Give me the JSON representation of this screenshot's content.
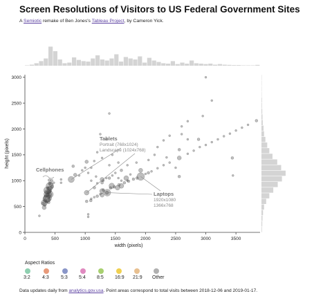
{
  "header": {
    "title": "Screen Resolutions of Visitors to US Federal Government Sites",
    "subtitle_prefix": "A ",
    "subtitle_link1": "Semiotic",
    "subtitle_mid": " remake of Ben Jones's ",
    "subtitle_link2": "Tableau Project",
    "subtitle_suffix": ", by Cameron Yick."
  },
  "legend": {
    "title": "Aspect Ratios",
    "items": [
      {
        "label": "3:2",
        "color": "#8fcfb0"
      },
      {
        "label": "4:3",
        "color": "#e89a7a"
      },
      {
        "label": "5:3",
        "color": "#8a96c8"
      },
      {
        "label": "5:4",
        "color": "#e08ac0"
      },
      {
        "label": "8:5",
        "color": "#a8d070"
      },
      {
        "label": "16:9",
        "color": "#f0d050"
      },
      {
        "label": "21:9",
        "color": "#e8c090"
      },
      {
        "label": "Other",
        "color": "#b0b0b0"
      }
    ]
  },
  "footer": {
    "prefix": "Data updates daily from ",
    "link": "analytics.gov.usa",
    "suffix": ". Point areas correspond to total visits between 2018-12-06 and 2019-01-17."
  },
  "annotations": {
    "cellphones": "Cellphones",
    "tablets": "Tablets",
    "tablets_portrait": "Portrait (768x1024)",
    "tablets_landscape": "Landscape (1024x768)",
    "laptops": "Laptops",
    "laptops_a": "1920x1080",
    "laptops_b": "1366x768"
  },
  "chart_data": {
    "type": "scatter",
    "title": "Screen Resolutions of Visitors to US Federal Government Sites",
    "xlabel": "width (pixels)",
    "ylabel": "height (pixels)",
    "xlim": [
      0,
      3900
    ],
    "ylim": [
      0,
      3050
    ],
    "xticks": [
      0,
      500,
      1000,
      1500,
      2000,
      2500,
      3000,
      3500
    ],
    "yticks": [
      0,
      500,
      1000,
      1500,
      2000,
      2500,
      3000
    ],
    "grid": false,
    "points": [
      {
        "x": 320,
        "y": 570,
        "r": 4.5
      },
      {
        "x": 360,
        "y": 640,
        "r": 5.5
      },
      {
        "x": 375,
        "y": 667,
        "r": 6
      },
      {
        "x": 360,
        "y": 740,
        "r": 4
      },
      {
        "x": 375,
        "y": 812,
        "r": 5.5
      },
      {
        "x": 414,
        "y": 736,
        "r": 5
      },
      {
        "x": 414,
        "y": 896,
        "r": 5.5
      },
      {
        "x": 412,
        "y": 846,
        "r": 3.5
      },
      {
        "x": 393,
        "y": 786,
        "r": 3
      },
      {
        "x": 320,
        "y": 480,
        "r": 3
      },
      {
        "x": 412,
        "y": 732,
        "r": 3
      },
      {
        "x": 360,
        "y": 780,
        "r": 3
      },
      {
        "x": 390,
        "y": 690,
        "r": 2.5
      },
      {
        "x": 340,
        "y": 620,
        "r": 2.5
      },
      {
        "x": 430,
        "y": 930,
        "r": 3
      },
      {
        "x": 300,
        "y": 560,
        "r": 2
      },
      {
        "x": 345,
        "y": 700,
        "r": 2
      },
      {
        "x": 400,
        "y": 640,
        "r": 2
      },
      {
        "x": 420,
        "y": 800,
        "r": 2
      },
      {
        "x": 380,
        "y": 850,
        "r": 2
      },
      {
        "x": 355,
        "y": 590,
        "r": 2
      },
      {
        "x": 330,
        "y": 530,
        "r": 2
      },
      {
        "x": 410,
        "y": 950,
        "r": 2
      },
      {
        "x": 395,
        "y": 580,
        "r": 2
      },
      {
        "x": 450,
        "y": 880,
        "r": 2
      },
      {
        "x": 445,
        "y": 1000,
        "r": 2
      },
      {
        "x": 405,
        "y": 1010,
        "r": 2
      },
      {
        "x": 480,
        "y": 960,
        "r": 1.5
      },
      {
        "x": 600,
        "y": 960,
        "r": 1.5
      },
      {
        "x": 240,
        "y": 320,
        "r": 1.5
      },
      {
        "x": 768,
        "y": 1024,
        "r": 4.5
      },
      {
        "x": 1024,
        "y": 768,
        "r": 3.5
      },
      {
        "x": 800,
        "y": 1280,
        "r": 2
      },
      {
        "x": 834,
        "y": 1112,
        "r": 2.5
      },
      {
        "x": 1024,
        "y": 1366,
        "r": 2.5
      },
      {
        "x": 600,
        "y": 1024,
        "r": 1.5
      },
      {
        "x": 1280,
        "y": 800,
        "r": 3.5
      },
      {
        "x": 1366,
        "y": 768,
        "r": 5
      },
      {
        "x": 1440,
        "y": 900,
        "r": 4
      },
      {
        "x": 1536,
        "y": 864,
        "r": 3.5
      },
      {
        "x": 1600,
        "y": 900,
        "r": 3.5
      },
      {
        "x": 1680,
        "y": 1050,
        "r": 3.5
      },
      {
        "x": 1920,
        "y": 1080,
        "r": 5.5
      },
      {
        "x": 1280,
        "y": 720,
        "r": 3
      },
      {
        "x": 1280,
        "y": 1024,
        "r": 3
      },
      {
        "x": 1360,
        "y": 768,
        "r": 2.5
      },
      {
        "x": 1280,
        "y": 960,
        "r": 2
      },
      {
        "x": 1400,
        "y": 1050,
        "r": 2
      },
      {
        "x": 1152,
        "y": 864,
        "r": 2
      },
      {
        "x": 1093,
        "y": 615,
        "r": 2
      },
      {
        "x": 1024,
        "y": 600,
        "r": 2
      },
      {
        "x": 1600,
        "y": 1200,
        "r": 2
      },
      {
        "x": 1920,
        "y": 1200,
        "r": 3
      },
      {
        "x": 2048,
        "y": 1152,
        "r": 2
      },
      {
        "x": 2560,
        "y": 1440,
        "r": 3
      },
      {
        "x": 2560,
        "y": 1080,
        "r": 2
      },
      {
        "x": 2560,
        "y": 1600,
        "r": 2
      },
      {
        "x": 2880,
        "y": 1800,
        "r": 2
      },
      {
        "x": 3440,
        "y": 1440,
        "r": 2
      },
      {
        "x": 3840,
        "y": 2160,
        "r": 2
      },
      {
        "x": 1300,
        "y": 820,
        "r": 2
      },
      {
        "x": 1420,
        "y": 860,
        "r": 2
      },
      {
        "x": 1480,
        "y": 880,
        "r": 2
      },
      {
        "x": 1560,
        "y": 920,
        "r": 2
      },
      {
        "x": 1650,
        "y": 960,
        "r": 2
      },
      {
        "x": 1720,
        "y": 990,
        "r": 2
      },
      {
        "x": 1800,
        "y": 1030,
        "r": 2
      },
      {
        "x": 1860,
        "y": 1050,
        "r": 2
      },
      {
        "x": 1200,
        "y": 700,
        "r": 2
      },
      {
        "x": 1150,
        "y": 680,
        "r": 1.5
      },
      {
        "x": 1100,
        "y": 650,
        "r": 1.5
      },
      {
        "x": 1250,
        "y": 740,
        "r": 1.5
      },
      {
        "x": 2000,
        "y": 1130,
        "r": 1.5
      },
      {
        "x": 2100,
        "y": 1180,
        "r": 1.5
      },
      {
        "x": 2200,
        "y": 1240,
        "r": 1.5
      },
      {
        "x": 2300,
        "y": 1300,
        "r": 1.5
      },
      {
        "x": 2400,
        "y": 1350,
        "r": 1.5
      },
      {
        "x": 2700,
        "y": 1520,
        "r": 1.5
      },
      {
        "x": 2800,
        "y": 1580,
        "r": 1.5
      },
      {
        "x": 3000,
        "y": 1690,
        "r": 1.5
      },
      {
        "x": 3100,
        "y": 1745,
        "r": 1.5
      },
      {
        "x": 3200,
        "y": 1800,
        "r": 1.5
      },
      {
        "x": 3300,
        "y": 1860,
        "r": 1.5
      },
      {
        "x": 3400,
        "y": 1910,
        "r": 1.5
      },
      {
        "x": 3500,
        "y": 1970,
        "r": 1.5
      },
      {
        "x": 3600,
        "y": 2025,
        "r": 1.5
      },
      {
        "x": 3700,
        "y": 2080,
        "r": 1.5
      },
      {
        "x": 1300,
        "y": 1000,
        "r": 1.5
      },
      {
        "x": 1350,
        "y": 1050,
        "r": 1.5
      },
      {
        "x": 1450,
        "y": 1100,
        "r": 1.5
      },
      {
        "x": 1500,
        "y": 1150,
        "r": 1.5
      },
      {
        "x": 1400,
        "y": 1300,
        "r": 1.5
      },
      {
        "x": 1600,
        "y": 1000,
        "r": 1.5
      },
      {
        "x": 1550,
        "y": 1050,
        "r": 1.5
      },
      {
        "x": 1700,
        "y": 1000,
        "r": 1.5
      },
      {
        "x": 1750,
        "y": 1120,
        "r": 1.5
      },
      {
        "x": 2050,
        "y": 1400,
        "r": 1.5
      },
      {
        "x": 2200,
        "y": 1650,
        "r": 1.5
      },
      {
        "x": 2300,
        "y": 1780,
        "r": 1.5
      },
      {
        "x": 2400,
        "y": 1870,
        "r": 1.5
      },
      {
        "x": 2600,
        "y": 2050,
        "r": 1.5
      },
      {
        "x": 2700,
        "y": 2150,
        "r": 1.5
      },
      {
        "x": 1200,
        "y": 1550,
        "r": 1.5
      },
      {
        "x": 1250,
        "y": 1900,
        "r": 1.5
      },
      {
        "x": 1400,
        "y": 2300,
        "r": 1.5
      },
      {
        "x": 1350,
        "y": 1800,
        "r": 1.5
      },
      {
        "x": 1100,
        "y": 1000,
        "r": 1.5
      },
      {
        "x": 1050,
        "y": 1150,
        "r": 1.5
      },
      {
        "x": 1000,
        "y": 1250,
        "r": 1.5
      },
      {
        "x": 1100,
        "y": 1250,
        "r": 1.5
      },
      {
        "x": 1150,
        "y": 1380,
        "r": 1.5
      },
      {
        "x": 1280,
        "y": 1440,
        "r": 1.5
      },
      {
        "x": 1200,
        "y": 950,
        "r": 1.5
      },
      {
        "x": 1180,
        "y": 1080,
        "r": 1.5
      },
      {
        "x": 900,
        "y": 1100,
        "r": 1.5
      },
      {
        "x": 950,
        "y": 1200,
        "r": 1.5
      },
      {
        "x": 1050,
        "y": 350,
        "r": 1.5
      },
      {
        "x": 1050,
        "y": 300,
        "r": 1.5
      },
      {
        "x": 2900,
        "y": 1650,
        "r": 1.5
      },
      {
        "x": 3000,
        "y": 3000,
        "r": 1.5
      },
      {
        "x": 2950,
        "y": 2250,
        "r": 1.5
      },
      {
        "x": 2700,
        "y": 1800,
        "r": 1.5
      },
      {
        "x": 2600,
        "y": 1900,
        "r": 1.5
      },
      {
        "x": 3100,
        "y": 2550,
        "r": 1.5
      },
      {
        "x": 1450,
        "y": 1500,
        "r": 1.5
      },
      {
        "x": 1550,
        "y": 1350,
        "r": 1.5
      },
      {
        "x": 1700,
        "y": 1300,
        "r": 1.5
      },
      {
        "x": 1850,
        "y": 1350,
        "r": 1.5
      },
      {
        "x": 2150,
        "y": 1500,
        "r": 1.5
      },
      {
        "x": 2350,
        "y": 1450,
        "r": 1.5
      },
      {
        "x": 2500,
        "y": 1250,
        "r": 1.5
      },
      {
        "x": 3450,
        "y": 1100,
        "r": 1.5
      }
    ],
    "width_histogram": [
      0.02,
      0.05,
      0.12,
      0.22,
      0.35,
      0.92,
      0.7,
      0.3,
      0.12,
      0.15,
      0.4,
      0.28,
      0.22,
      0.2,
      0.35,
      0.5,
      0.3,
      0.25,
      0.35,
      0.55,
      0.2,
      0.42,
      0.35,
      0.3,
      0.45,
      0.15,
      0.38,
      0.25,
      0.18,
      0.12,
      0.1,
      0.22,
      0.08,
      0.15,
      0.1,
      0.25,
      0.12,
      0.1,
      0.08,
      0.1,
      0.05,
      0.08,
      0.05,
      0.04,
      0.03,
      0.03,
      0.02,
      0.02,
      0.02,
      0.04
    ],
    "height_histogram": [
      0.02,
      0.03,
      0.04,
      0.06,
      0.1,
      0.18,
      0.3,
      0.45,
      0.62,
      0.78,
      0.92,
      0.75,
      0.6,
      0.42,
      0.3,
      0.22,
      0.15,
      0.1,
      0.08,
      0.05,
      0.04,
      0.03,
      0.02,
      0.02,
      0.01,
      0.01,
      0.01,
      0.01
    ]
  }
}
